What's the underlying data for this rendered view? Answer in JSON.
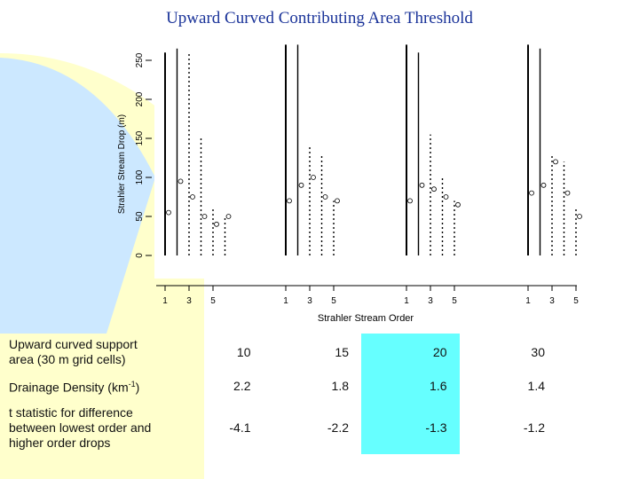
{
  "title": "Upward Curved Contributing Area Threshold",
  "colors": {
    "title": "#1a3399",
    "highlight": "#66ffff",
    "label_bg": "#ffffcc",
    "deco_yellow": "#ffffcc",
    "deco_blue": "#cce8ff"
  },
  "chart_data": {
    "type": "scatter",
    "title": "",
    "xlabel": "Strahler Stream Order",
    "ylabel": "Strahler Stream Drop (m)",
    "ylim": [
      0,
      250
    ],
    "yticks": [
      "0",
      "50",
      "100",
      "150",
      "200",
      "250"
    ],
    "panel_xticks": [
      "1",
      "3",
      "5"
    ],
    "panels": [
      {
        "threshold": "10",
        "orders": [
          1,
          2,
          3,
          4,
          5,
          6
        ],
        "max_drop": [
          260,
          265,
          260,
          150,
          60,
          50
        ],
        "mean_drop": [
          55,
          95,
          75,
          50,
          40,
          50
        ]
      },
      {
        "threshold": "15",
        "orders": [
          1,
          2,
          3,
          4,
          5
        ],
        "max_drop": [
          275,
          270,
          140,
          130,
          70
        ],
        "mean_drop": [
          70,
          90,
          100,
          75,
          70
        ]
      },
      {
        "threshold": "20",
        "orders": [
          1,
          2,
          3,
          4,
          5
        ],
        "max_drop": [
          270,
          260,
          155,
          100,
          70
        ],
        "mean_drop": [
          70,
          90,
          85,
          75,
          65
        ]
      },
      {
        "threshold": "30",
        "orders": [
          1,
          2,
          3,
          4,
          5
        ],
        "max_drop": [
          270,
          265,
          130,
          120,
          60
        ],
        "mean_drop": [
          80,
          90,
          120,
          80,
          50
        ]
      }
    ]
  },
  "table": {
    "rows": [
      {
        "label": "Upward curved support area (30 m grid cells)",
        "values": [
          "10",
          "15",
          "20",
          "30"
        ]
      },
      {
        "label": "Drainage Density (km",
        "label_sup": "-1",
        "label_tail": ")",
        "values": [
          "2.2",
          "1.8",
          "1.6",
          "1.4"
        ]
      },
      {
        "label": "t statistic for difference between lowest order and higher order drops",
        "values": [
          "-4.1",
          "-2.2",
          "-1.3",
          "-1.2"
        ]
      }
    ],
    "highlight_column": 2
  }
}
